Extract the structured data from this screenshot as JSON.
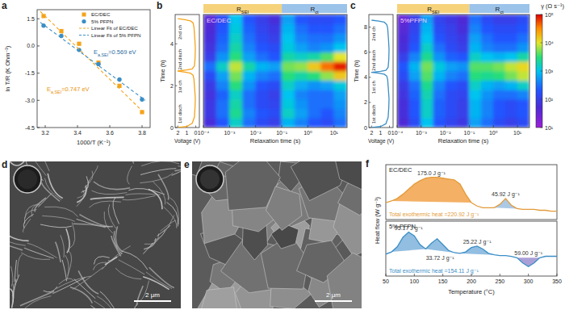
{
  "chart_data": [
    {
      "panel_label": "a",
      "type": "scatter",
      "x_label": "1000/T (K⁻¹)",
      "y_label": "ln T/R (K Ohm⁻¹)",
      "xlim": [
        3.15,
        3.85
      ],
      "xticks": [
        3.2,
        3.4,
        3.6,
        3.8
      ],
      "ylim": [
        -4.5,
        2.0
      ],
      "yticks": [
        -4.5,
        {
          "value": -3,
          "label": "-3.0"
        },
        -1.5,
        {
          "value": 0,
          "label": "0.0"
        },
        1.5
      ],
      "legend": "upper right",
      "series": [
        {
          "name": "EC/DEC",
          "color": "#f5a31a",
          "marker": "square",
          "x": [
            3.19,
            3.3,
            3.41,
            3.53,
            3.66,
            3.8
          ],
          "values": [
            1.65,
            0.82,
            0.12,
            -0.92,
            -2.2,
            -3.65
          ]
        },
        {
          "name": "5% PFPN",
          "color": "#3b8ec6",
          "marker": "circle",
          "x": [
            3.19,
            3.3,
            3.41,
            3.53,
            3.66,
            3.8
          ],
          "values": [
            1.12,
            0.55,
            -0.22,
            -1.0,
            -1.85,
            -2.95
          ]
        },
        {
          "name": "Linear Fit of EC/DEC",
          "type": "line",
          "line_style": "dashed",
          "color": "#f5a31a",
          "x": [
            3.17,
            3.82
          ],
          "values": [
            1.9,
            -3.75
          ]
        },
        {
          "name": "Linear Fit of 5% PFPN",
          "type": "line",
          "line_style": "dashed",
          "color": "#3b8ec6",
          "x": [
            3.17,
            3.82
          ],
          "values": [
            1.3,
            -3.0
          ]
        }
      ],
      "annotations": [
        {
          "text": {
            "main": "E",
            "sub": "a,SEI",
            "rest": "=0.569 eV"
          },
          "x": 3.5,
          "y": -0.45,
          "color": "#2f6f9f"
        },
        {
          "text": {
            "main": "E",
            "sub": "a,SEI",
            "rest": "=0.747 eV"
          },
          "x": 3.21,
          "y": -2.5,
          "color": "#e8940f"
        }
      ]
    },
    {
      "panel_label": "b",
      "type": "heatmap",
      "inset_title": "EC/DEC",
      "x_label": "Relaxation time (s)",
      "y_label": "Time (h)",
      "log": "x",
      "xlim": [
        0.0001,
        31.6
      ],
      "xticks": [
        {
          "value": 0.0001,
          "label": "10⁻⁴"
        },
        {
          "value": 0.001,
          "label": "10⁻³"
        },
        {
          "value": 0.01,
          "label": "10⁻²"
        },
        {
          "value": 0.1,
          "label": "10⁻¹"
        },
        {
          "value": 1,
          "label": "10⁰"
        },
        {
          "value": 10,
          "label": "10¹"
        }
      ],
      "ylim": [
        0,
        5.4
      ],
      "yticks": [
        0,
        2,
        4
      ],
      "bands": [
        {
          "label": {
            "main": "R",
            "sub": "SEI"
          },
          "range": [
            0.0001,
            0.1
          ],
          "color": "#f6d27a"
        },
        {
          "label": {
            "main": "R",
            "sub": "ct"
          },
          "range": [
            0.1,
            31.6
          ],
          "color": "#9cc3ea"
        }
      ],
      "x_edges": [
        0.0001,
        0.000316,
        0.001,
        0.00316,
        0.01,
        0.0316,
        0.1,
        0.316,
        1,
        3.16,
        10,
        31.6
      ],
      "y_edges": [
        0,
        0.45,
        0.9,
        1.35,
        1.8,
        2.25,
        2.7,
        3.15,
        3.6,
        4.05,
        4.5,
        4.95,
        5.4
      ],
      "cells": [
        [
          60,
          200,
          1500,
          300,
          150,
          100,
          800,
          400,
          200,
          150,
          300
        ],
        [
          80,
          300,
          2500,
          400,
          200,
          150,
          1500,
          600,
          300,
          200,
          400
        ],
        [
          80,
          300,
          2000,
          300,
          150,
          120,
          1200,
          500,
          300,
          300,
          500
        ],
        [
          70,
          250,
          1500,
          300,
          150,
          100,
          1000,
          400,
          300,
          300,
          600
        ],
        [
          90,
          400,
          3000,
          500,
          200,
          150,
          1500,
          700,
          500,
          600,
          1200
        ],
        [
          150,
          600,
          5000,
          800,
          400,
          300,
          3000,
          2000,
          3000,
          6000,
          15000
        ],
        [
          300,
          1500,
          8000,
          2000,
          800,
          600,
          5000,
          6000,
          15000,
          40000,
          80000
        ],
        [
          100,
          500,
          3000,
          600,
          300,
          200,
          2000,
          1500,
          2000,
          4000,
          10000
        ],
        [
          70,
          300,
          2000,
          400,
          200,
          150,
          1200,
          600,
          400,
          500,
          1000
        ],
        [
          60,
          250,
          1500,
          300,
          150,
          100,
          1000,
          400,
          300,
          300,
          500
        ],
        [
          50,
          200,
          1200,
          250,
          120,
          80,
          800,
          300,
          200,
          200,
          300
        ],
        [
          40,
          150,
          1000,
          200,
          100,
          60,
          600,
          200,
          150,
          150,
          200
        ]
      ],
      "voltage_profile": {
        "type": "line",
        "x_label": "Voltage (V)",
        "xlim": [
          2.3,
          -0.4
        ],
        "xticks": [
          2,
          1,
          0
        ],
        "color": "#f5a31a",
        "x": [
          2.0,
          1.0,
          0.4,
          0.15,
          0.08,
          0.05,
          0.1,
          0.15,
          0.2,
          0.3,
          0.6,
          1.2,
          2.0,
          1.0,
          0.4,
          0.15,
          0.08,
          0.05,
          0.1,
          0.15,
          0.2,
          0.3,
          0.6,
          1.2,
          2.0
        ],
        "values": [
          0,
          0.05,
          0.2,
          0.5,
          1.0,
          1.4,
          1.7,
          2.0,
          2.3,
          2.5,
          2.6,
          2.65,
          2.7,
          2.75,
          2.8,
          2.95,
          3.3,
          3.8,
          4.2,
          4.5,
          4.8,
          5.0,
          5.1,
          5.15,
          5.2
        ],
        "phase_labels": [
          "1st disch",
          "1st ch",
          "2nd disch",
          "2nd ch"
        ]
      }
    },
    {
      "panel_label": "c",
      "type": "heatmap",
      "inset_title": "5%PFPN",
      "x_label": "Relaxation time (s)",
      "y_label": "Time (h)",
      "log": "x",
      "xlim": [
        0.0001,
        31.6
      ],
      "xticks": [
        {
          "value": 0.0001,
          "label": "10⁻⁴"
        },
        {
          "value": 0.001,
          "label": "10⁻³"
        },
        {
          "value": 0.01,
          "label": "10⁻²"
        },
        {
          "value": 0.1,
          "label": "10⁻¹"
        },
        {
          "value": 1,
          "label": "10⁰"
        },
        {
          "value": 10,
          "label": "10¹"
        }
      ],
      "ylim": [
        0,
        9
      ],
      "yticks": [
        0,
        2,
        4,
        6,
        8
      ],
      "bands": [
        {
          "label": {
            "main": "R",
            "sub": "SEI"
          },
          "range": [
            0.0001,
            0.1
          ],
          "color": "#f6d27a"
        },
        {
          "label": {
            "main": "R",
            "sub": "ct"
          },
          "range": [
            0.1,
            31.6
          ],
          "color": "#9cc3ea"
        }
      ],
      "x_edges": [
        0.0001,
        0.000316,
        0.001,
        0.00316,
        0.01,
        0.0316,
        0.1,
        0.316,
        1,
        3.16,
        10,
        31.6
      ],
      "y_edges": [
        0,
        0.75,
        1.5,
        2.25,
        3,
        3.75,
        4.5,
        5.25,
        6,
        6.75,
        7.5,
        8.25,
        9
      ],
      "cells": [
        [
          50,
          150,
          1000,
          200,
          120,
          80,
          600,
          300,
          150,
          100,
          150
        ],
        [
          60,
          200,
          1500,
          250,
          150,
          100,
          800,
          400,
          200,
          150,
          200
        ],
        [
          60,
          200,
          1500,
          250,
          150,
          100,
          800,
          400,
          200,
          150,
          200
        ],
        [
          70,
          250,
          1800,
          300,
          150,
          120,
          1000,
          500,
          300,
          300,
          400
        ],
        [
          90,
          300,
          2500,
          400,
          200,
          150,
          1500,
          800,
          600,
          800,
          1500
        ],
        [
          150,
          600,
          4000,
          800,
          400,
          300,
          3000,
          2500,
          3000,
          5000,
          8000
        ],
        [
          200,
          800,
          5000,
          1200,
          600,
          500,
          4000,
          4000,
          5000,
          8000,
          12000
        ],
        [
          100,
          400,
          2500,
          500,
          250,
          200,
          1500,
          1000,
          800,
          1000,
          2000
        ],
        [
          60,
          200,
          1500,
          300,
          150,
          100,
          800,
          400,
          300,
          300,
          500
        ],
        [
          50,
          150,
          1000,
          200,
          120,
          80,
          600,
          300,
          200,
          200,
          300
        ],
        [
          40,
          120,
          800,
          150,
          100,
          60,
          400,
          200,
          150,
          150,
          200
        ],
        [
          30,
          100,
          600,
          120,
          80,
          50,
          300,
          150,
          100,
          100,
          150
        ]
      ],
      "colorbar": {
        "label": "γ (Ω s⁻¹)",
        "range": [
          10,
          100000
        ],
        "log": true,
        "ticks": [
          {
            "value": 10,
            "label": "10¹"
          },
          {
            "value": 100,
            "label": "10²"
          },
          {
            "value": 1000,
            "label": "10³"
          },
          {
            "value": 10000,
            "label": "10⁴"
          },
          {
            "value": 100000,
            "label": "10⁵"
          }
        ]
      },
      "voltage_profile": {
        "type": "line",
        "x_label": "Voltage (V)",
        "xlim": [
          2.3,
          -0.4
        ],
        "xticks": [
          2,
          1,
          0
        ],
        "color": "#3b8ec6",
        "x": [
          2.0,
          1.0,
          0.4,
          0.15,
          0.08,
          0.05,
          0.1,
          0.15,
          0.2,
          0.3,
          0.6,
          1.2,
          2.0,
          1.0,
          0.4,
          0.15,
          0.08,
          0.05,
          0.1,
          0.15,
          0.2,
          0.3,
          0.6,
          1.2,
          2.0
        ],
        "values": [
          0,
          0.08,
          0.3,
          0.8,
          1.6,
          2.3,
          2.8,
          3.3,
          3.8,
          4.1,
          4.25,
          4.33,
          4.4,
          4.47,
          4.55,
          4.8,
          5.4,
          6.2,
          6.9,
          7.4,
          7.9,
          8.2,
          8.4,
          8.48,
          8.55
        ],
        "phase_labels": [
          "1st disch",
          "1st ch",
          "2nd disch",
          "2nd ch"
        ]
      }
    },
    {
      "panel_label": "f",
      "type": "line",
      "x_label": "Temperature (°C)",
      "y_label": "Heat flow (W g⁻¹)",
      "tick_labels": "x",
      "xlim": [
        50,
        350
      ],
      "xticks": [
        50,
        100,
        150,
        200,
        250,
        300,
        350
      ],
      "x": [
        50,
        60,
        70,
        80,
        90,
        100,
        110,
        120,
        130,
        140,
        150,
        160,
        170,
        180,
        190,
        200,
        210,
        220,
        230,
        240,
        250,
        260,
        270,
        280,
        290,
        300,
        310,
        320,
        330,
        340,
        350
      ],
      "subplots": [
        {
          "title": "EC/DEC",
          "color": "#e39b3a",
          "ylim": [
            0.3,
            0.95
          ],
          "values": [
            0.5,
            0.52,
            0.55,
            0.6,
            0.66,
            0.72,
            0.76,
            0.79,
            0.8,
            0.8,
            0.79,
            0.78,
            0.77,
            0.72,
            0.6,
            0.5,
            0.46,
            0.44,
            0.44,
            0.44,
            0.48,
            0.55,
            0.47,
            0.43,
            0.42,
            0.42,
            0.42,
            0.41,
            0.41,
            0.4,
            0.4
          ],
          "peaks": [
            {
              "range": [
                60,
                200
              ],
              "value": 175.0,
              "label": "175.0 J g⁻¹",
              "color": "#f2a24a"
            },
            {
              "range": [
                240,
                280
              ],
              "value": 45.92,
              "label": "45.92 J g⁻¹",
              "color": "#9cc0e0"
            }
          ],
          "total_label": "Total exothermic heat =220.92 J g⁻¹"
        },
        {
          "title": "5% PFPN",
          "color": "#3b8ec6",
          "ylim": [
            0.15,
            0.9
          ],
          "values": [
            0.45,
            0.48,
            0.55,
            0.68,
            0.75,
            0.7,
            0.58,
            0.52,
            0.6,
            0.66,
            0.58,
            0.5,
            0.47,
            0.46,
            0.48,
            0.54,
            0.56,
            0.52,
            0.46,
            0.44,
            0.43,
            0.43,
            0.42,
            0.4,
            0.33,
            0.28,
            0.33,
            0.4,
            0.42,
            0.42,
            0.42
          ],
          "peaks": [
            {
              "range": [
                60,
                120
              ],
              "value": 95.17,
              "label": "95.17 J g⁻¹",
              "color": "#7fb3dc"
            },
            {
              "range": [
                120,
                170
              ],
              "value": 33.72,
              "label": "33.72 J g⁻¹",
              "color": "#7fb3dc"
            },
            {
              "range": [
                180,
                240
              ],
              "value": 25.22,
              "label": "25.22 J g⁻¹",
              "color": "#7fb3dc"
            },
            {
              "range": [
                280,
                320
              ],
              "value": 59.0,
              "label": "59.00 J g⁻¹",
              "color": "#9b8fd0"
            }
          ],
          "total_label": "Total exothermic heat =154.11 J g⁻¹"
        }
      ]
    }
  ],
  "images": [
    {
      "panel_label": "d",
      "scale_bar": "2 μm"
    },
    {
      "panel_label": "e",
      "scale_bar": "2 μm"
    }
  ]
}
